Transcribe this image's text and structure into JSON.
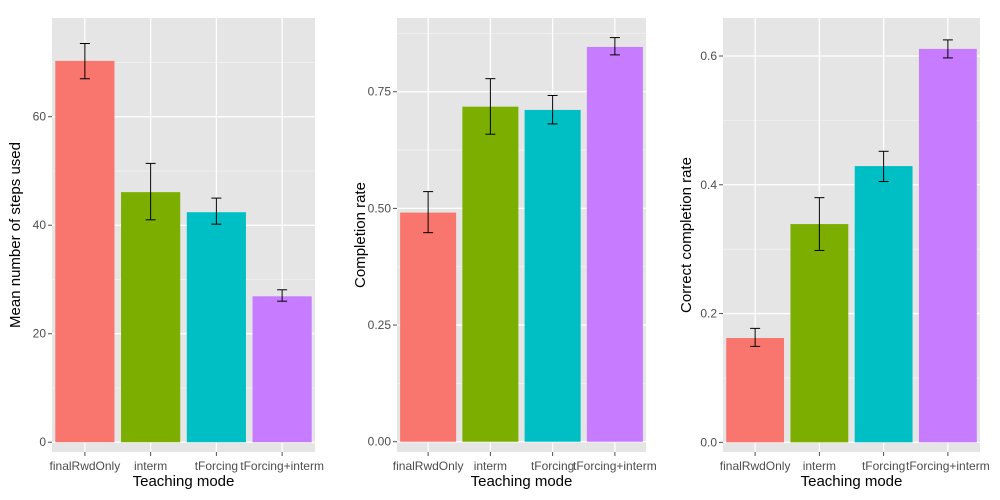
{
  "colors": {
    "panel_background": "#e5e5e5",
    "grid_major": "#ffffff",
    "grid_minor": "#f2f2f2",
    "tick_text": "#4d4d4d",
    "error_bar": "#000000",
    "finalRwdOnly": "#F8766D",
    "interm": "#7CAE00",
    "tForcing": "#00BFC4",
    "tForcing+interm": "#C77CFF"
  },
  "chart_data": [
    {
      "type": "bar",
      "title": "",
      "xlabel": "Teaching mode",
      "ylabel": "Mean number of steps used",
      "categories": [
        "finalRwdOnly",
        "interm",
        "tForcing",
        "tForcing+interm"
      ],
      "category_labels": [
        "finalRwdOnly",
        "interm",
        "tForcing",
        "tForcing+interm"
      ],
      "values": [
        70.3,
        46.1,
        42.4,
        26.9
      ],
      "error_low": [
        67.0,
        41.0,
        40.2,
        26.0
      ],
      "error_high": [
        73.5,
        51.4,
        45.0,
        28.1
      ],
      "ylim": [
        -1.8,
        78.2
      ],
      "yticks": [
        0,
        20,
        40,
        60
      ],
      "ytick_labels": [
        "0",
        "20",
        "40",
        "60"
      ],
      "grid": true,
      "legend": "none"
    },
    {
      "type": "bar",
      "title": "",
      "xlabel": "Teaching mode",
      "ylabel": "Completion rate",
      "categories": [
        "finalRwdOnly",
        "interm",
        "tForcing",
        "tForcing+interm"
      ],
      "category_labels": [
        "finalRwdOnly",
        "interm",
        "tForcing",
        "tForcing+interm"
      ],
      "values": [
        0.491,
        0.718,
        0.711,
        0.846
      ],
      "error_low": [
        0.448,
        0.659,
        0.681,
        0.829
      ],
      "error_high": [
        0.536,
        0.778,
        0.742,
        0.866
      ],
      "ylim": [
        -0.022,
        0.908
      ],
      "yticks": [
        0,
        0.25,
        0.5,
        0.75
      ],
      "ytick_labels": [
        "0.00",
        "0.25",
        "0.50",
        "0.75"
      ],
      "grid": true,
      "legend": "none"
    },
    {
      "type": "bar",
      "title": "",
      "xlabel": "Teaching mode",
      "ylabel": "Correct completion rate",
      "categories": [
        "finalRwdOnly",
        "interm",
        "tForcing",
        "tForcing+interm"
      ],
      "category_labels": [
        "finalRwdOnly",
        "interm",
        "tForcing",
        "tForcing+interm"
      ],
      "values": [
        0.162,
        0.339,
        0.429,
        0.611
      ],
      "error_low": [
        0.149,
        0.298,
        0.405,
        0.597
      ],
      "error_high": [
        0.177,
        0.38,
        0.452,
        0.625
      ],
      "ylim": [
        -0.015,
        0.659
      ],
      "yticks": [
        0,
        0.2,
        0.4,
        0.6
      ],
      "ytick_labels": [
        "0.0",
        "0.2",
        "0.4",
        "0.6"
      ],
      "grid": true,
      "legend": "none"
    }
  ]
}
